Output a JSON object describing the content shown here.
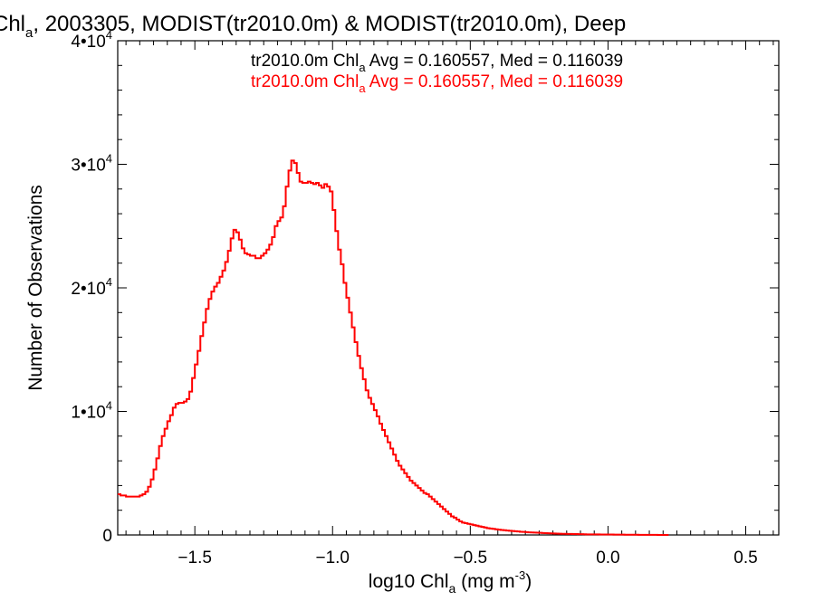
{
  "chart_data": {
    "type": "histogram",
    "title_main": "Chl",
    "title_sub": "a",
    "title_rest": ", 2003305, MODIST(tr2010.0m) & MODIST(tr2010.0m), Deep",
    "xlabel_pre": "log10 Chl",
    "xlabel_sub": "a",
    "xlabel_post": " (mg m",
    "xlabel_sup": "-3",
    "xlabel_close": ")",
    "ylabel": "Number of Observations",
    "xlim": [
      -1.78,
      0.62
    ],
    "ylim": [
      0,
      40000
    ],
    "x_ticks": [
      {
        "value": -1.5,
        "label": "−1.5"
      },
      {
        "value": -1.0,
        "label": "−1.0"
      },
      {
        "value": -0.5,
        "label": "−0.5"
      },
      {
        "value": 0.0,
        "label": "0.0"
      },
      {
        "value": 0.5,
        "label": "0.5"
      }
    ],
    "y_ticks": [
      {
        "value": 0,
        "base": "0",
        "exp": ""
      },
      {
        "value": 10000,
        "base": "1•10",
        "exp": "4"
      },
      {
        "value": 20000,
        "base": "2•10",
        "exp": "4"
      },
      {
        "value": 30000,
        "base": "3•10",
        "exp": "4"
      },
      {
        "value": 40000,
        "base": "4•10",
        "exp": "4"
      }
    ],
    "legend": [
      {
        "pre": "tr2010.0m Chl",
        "sub": "a",
        "post": " Avg = 0.160557, Med = 0.116039",
        "color": "#000000"
      },
      {
        "pre": "tr2010.0m Chl",
        "sub": "a",
        "post": " Avg = 0.160557, Med = 0.116039",
        "color": "#ff0000"
      }
    ],
    "series": [
      {
        "color": "#ff0000",
        "bin_width": 0.01,
        "x_start": -1.78,
        "values": [
          3300,
          3200,
          3200,
          3100,
          3100,
          3100,
          3100,
          3100,
          3200,
          3300,
          3500,
          3900,
          4500,
          5300,
          6200,
          7200,
          8000,
          8600,
          9200,
          9700,
          10300,
          10600,
          10700,
          10700,
          10800,
          11000,
          11600,
          12700,
          13800,
          14900,
          16100,
          17200,
          18300,
          19100,
          19700,
          20100,
          20400,
          20900,
          21400,
          22100,
          23000,
          24000,
          24700,
          24500,
          23900,
          23200,
          22800,
          22700,
          22600,
          22600,
          22400,
          22400,
          22600,
          22800,
          23100,
          23500,
          24100,
          25000,
          25400,
          25700,
          26600,
          28200,
          29500,
          30300,
          30100,
          29300,
          28600,
          28500,
          28500,
          28600,
          28500,
          28400,
          28500,
          28300,
          28100,
          28400,
          28200,
          27800,
          26300,
          24600,
          23100,
          21900,
          20400,
          19200,
          18000,
          16800,
          15600,
          14500,
          13500,
          12600,
          11700,
          11100,
          10600,
          10100,
          9600,
          9000,
          8500,
          8000,
          7500,
          7000,
          6500,
          6000,
          5600,
          5300,
          5000,
          4700,
          4400,
          4200,
          4000,
          3800,
          3600,
          3400,
          3300,
          3100,
          2900,
          2700,
          2500,
          2300,
          2100,
          1900,
          1700,
          1500,
          1400,
          1250,
          1100,
          1000,
          950,
          900,
          850,
          800,
          750,
          700,
          650,
          600,
          550,
          520,
          490,
          460,
          430,
          400,
          380,
          360,
          340,
          320,
          300,
          280,
          260,
          245,
          230,
          215,
          200,
          190,
          180,
          170,
          160,
          150,
          140,
          130,
          120,
          110,
          100,
          95,
          90,
          85,
          80,
          75,
          70,
          65,
          60,
          55,
          50,
          48,
          46,
          44,
          42,
          40,
          38,
          36,
          34,
          32,
          30,
          28,
          26,
          24,
          22,
          20,
          18,
          16,
          14,
          12,
          10,
          9,
          8,
          7,
          6,
          5,
          4,
          3,
          2,
          1
        ]
      }
    ]
  }
}
